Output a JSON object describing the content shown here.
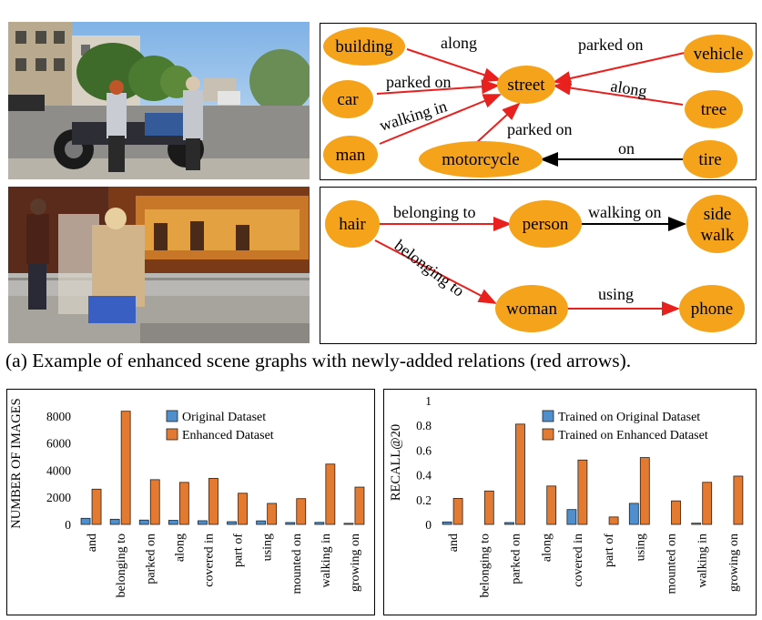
{
  "caption": "(a) Example of enhanced scene graphs with newly-added relations (red arrows).",
  "colors": {
    "node": "#f5a31a",
    "new_relation": "#e8201e",
    "existing_relation": "#000000",
    "original_bar": "#4f8fcd",
    "enhanced_bar": "#e27a32"
  },
  "graph1": {
    "nodes": {
      "building": "building",
      "car": "car",
      "man": "man",
      "street": "street",
      "motorcycle": "motorcycle",
      "vehicle": "vehicle",
      "tree": "tree",
      "tire": "tire"
    },
    "edges": {
      "along1": "along",
      "parked_on1": "parked on",
      "walking_in": "walking in",
      "parked_on2": "parked on",
      "parked_on3": "parked on",
      "along2": "along",
      "on": "on"
    }
  },
  "graph2": {
    "nodes": {
      "hair": "hair",
      "person": "person",
      "side": "side",
      "walk": "walk",
      "woman": "woman",
      "phone": "phone"
    },
    "edges": {
      "belonging_to1": "belonging to",
      "walking_on": "walking on",
      "belonging_to2": "belonging to",
      "using": "using"
    }
  },
  "chart_data": [
    {
      "type": "bar",
      "ylabel": "NUMBER OF IMAGES",
      "ylim": [
        0,
        9000
      ],
      "yticks": [
        "0",
        "2000",
        "4000",
        "6000",
        "8000"
      ],
      "legend": "top",
      "categories": [
        "and",
        "belonging to",
        "parked on",
        "along",
        "covered in",
        "part of",
        "using",
        "mounted on",
        "walking in",
        "growing on"
      ],
      "series": [
        {
          "name": "Original Dataset",
          "values": [
            450,
            380,
            320,
            300,
            270,
            200,
            260,
            140,
            150,
            80
          ]
        },
        {
          "name": "Enhanced Dataset",
          "values": [
            2600,
            8350,
            3300,
            3100,
            3400,
            2300,
            1550,
            1900,
            4450,
            2750
          ]
        }
      ]
    },
    {
      "type": "bar",
      "ylabel": "RECALL@20",
      "ylim": [
        0,
        1
      ],
      "yticks": [
        "0",
        "0.2",
        "0.4",
        "0.6",
        "0.8",
        "1"
      ],
      "legend": "top",
      "categories": [
        "and",
        "belonging to",
        "parked on",
        "along",
        "covered in",
        "part of",
        "using",
        "mounted on",
        "walking in",
        "growing on"
      ],
      "series": [
        {
          "name": "Trained on Original Dataset",
          "values": [
            0.02,
            0.0,
            0.015,
            0.0,
            0.12,
            0.0,
            0.17,
            0.0,
            0.01,
            0.0
          ]
        },
        {
          "name": "Trained on Enhanced Dataset",
          "values": [
            0.21,
            0.27,
            0.81,
            0.31,
            0.52,
            0.06,
            0.54,
            0.19,
            0.34,
            0.39
          ]
        }
      ]
    }
  ]
}
